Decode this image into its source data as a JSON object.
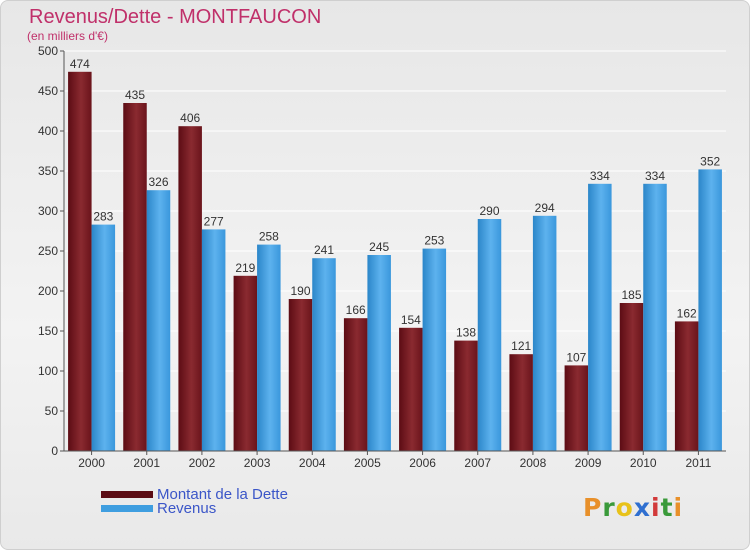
{
  "chart_data": {
    "type": "bar",
    "title": "Revenus/Dette - MONTFAUCON",
    "subtitle": "(en milliers d'€)",
    "categories": [
      "2000",
      "2001",
      "2002",
      "2003",
      "2004",
      "2005",
      "2006",
      "2007",
      "2008",
      "2009",
      "2010",
      "2011"
    ],
    "series": [
      {
        "name": "Montant de la Dette",
        "color": "#7a1a22",
        "values": [
          474,
          435,
          406,
          219,
          190,
          166,
          154,
          138,
          121,
          107,
          185,
          162
        ]
      },
      {
        "name": "Revenus",
        "color": "#3f9ee0",
        "values": [
          283,
          326,
          277,
          258,
          241,
          245,
          253,
          290,
          294,
          334,
          334,
          352
        ]
      }
    ],
    "ylim": [
      0,
      500
    ],
    "yticks": [
      0,
      50,
      100,
      150,
      200,
      250,
      300,
      350,
      400,
      450,
      500
    ],
    "grid": true,
    "legend_position": "bottom-left"
  },
  "logo": {
    "letters": [
      "P",
      "r",
      "o",
      "x",
      "i",
      "t",
      "i"
    ],
    "colors": [
      "#e8902a",
      "#3a9a3a",
      "#e8c21a",
      "#2f6fd0",
      "#d23a3a",
      "#3a9a3a",
      "#e8902a"
    ]
  }
}
